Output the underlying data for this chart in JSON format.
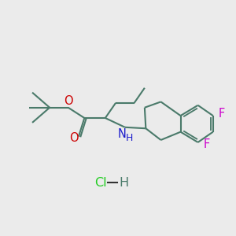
{
  "bg_color": "#ebebeb",
  "bond_color": "#4a7a6a",
  "O_color": "#cc0000",
  "N_color": "#1a1acc",
  "F_color": "#cc00cc",
  "Cl_color": "#22cc22",
  "line_width": 1.5,
  "font_size": 10.5,
  "fig_w": 3.0,
  "fig_h": 3.0,
  "dpi": 100,
  "xlim": [
    0,
    10
  ],
  "ylim": [
    0,
    10
  ]
}
